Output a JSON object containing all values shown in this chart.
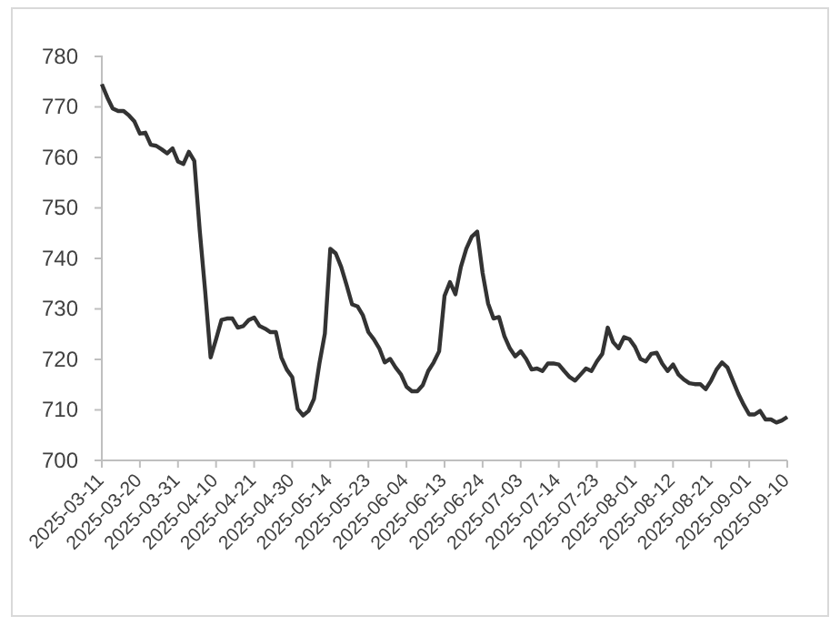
{
  "chart_data": {
    "type": "line",
    "categories": [
      "2025-03-11",
      null,
      null,
      null,
      null,
      null,
      null,
      "2025-03-20",
      null,
      null,
      null,
      null,
      null,
      null,
      "2025-03-31",
      null,
      null,
      null,
      null,
      null,
      null,
      "2025-04-10",
      null,
      null,
      null,
      null,
      null,
      null,
      "2025-04-21",
      null,
      null,
      null,
      null,
      null,
      null,
      "2025-04-30",
      null,
      null,
      null,
      null,
      null,
      null,
      "2025-05-14",
      null,
      null,
      null,
      null,
      null,
      null,
      "2025-05-23",
      null,
      null,
      null,
      null,
      null,
      null,
      "2025-06-04",
      null,
      null,
      null,
      null,
      null,
      null,
      "2025-06-13",
      null,
      null,
      null,
      null,
      null,
      null,
      "2025-06-24",
      null,
      null,
      null,
      null,
      null,
      null,
      "2025-07-03",
      null,
      null,
      null,
      null,
      null,
      null,
      "2025-07-14",
      null,
      null,
      null,
      null,
      null,
      null,
      "2025-07-23",
      null,
      null,
      null,
      null,
      null,
      null,
      "2025-08-01",
      null,
      null,
      null,
      null,
      null,
      null,
      "2025-08-12",
      null,
      null,
      null,
      null,
      null,
      null,
      "2025-08-21",
      null,
      null,
      null,
      null,
      null,
      null,
      "2025-09-01",
      null,
      null,
      null,
      null,
      null,
      null,
      "2025-09-10"
    ],
    "series": [
      {
        "color": "#333333",
        "values": [
          774.5,
          771.9,
          769.7,
          769.2,
          769.2,
          768.3,
          767.1,
          764.7,
          764.9,
          762.5,
          762.3,
          761.6,
          760.8,
          761.8,
          759.2,
          758.7,
          761.1,
          759.3,
          745.5,
          733.5,
          720.4,
          724,
          727.8,
          728.1,
          728.1,
          726.3,
          726.6,
          727.8,
          728.3,
          726.6,
          726.1,
          725.4,
          725.4,
          720.4,
          718,
          716.5,
          710.2,
          708.9,
          709.8,
          712.2,
          719.2,
          725.1,
          741.9,
          741,
          738.3,
          734.7,
          730.9,
          730.5,
          728.7,
          725.4,
          724,
          722.2,
          719.4,
          720.1,
          718.4,
          717,
          714.6,
          713.7,
          713.7,
          714.9,
          717.7,
          719.4,
          721.6,
          732.6,
          735.3,
          732.9,
          738.3,
          741.9,
          744.3,
          745.3,
          737.1,
          731.1,
          728.1,
          728.4,
          724.6,
          722.2,
          720.6,
          721.6,
          720.1,
          718,
          718.2,
          717.7,
          719.2,
          719.2,
          719,
          717.7,
          716.5,
          715.8,
          717,
          718.2,
          717.7,
          719.6,
          721.1,
          726.3,
          723.4,
          722.2,
          724.4,
          724,
          722.5,
          720.1,
          719.6,
          721.1,
          721.3,
          719.2,
          717.7,
          719,
          717,
          716,
          715.3,
          715.1,
          715.1,
          714.1,
          715.8,
          718,
          719.4,
          718.4,
          715.8,
          713.2,
          711,
          709.1,
          709.1,
          709.8,
          708.1,
          708.1,
          707.5,
          707.9,
          708.6
        ]
      }
    ],
    "ylim": [
      700,
      780
    ],
    "yticks": [
      700,
      710,
      720,
      730,
      740,
      750,
      760,
      770,
      780
    ],
    "grid": false,
    "marker": "none",
    "line_style": "solid"
  }
}
